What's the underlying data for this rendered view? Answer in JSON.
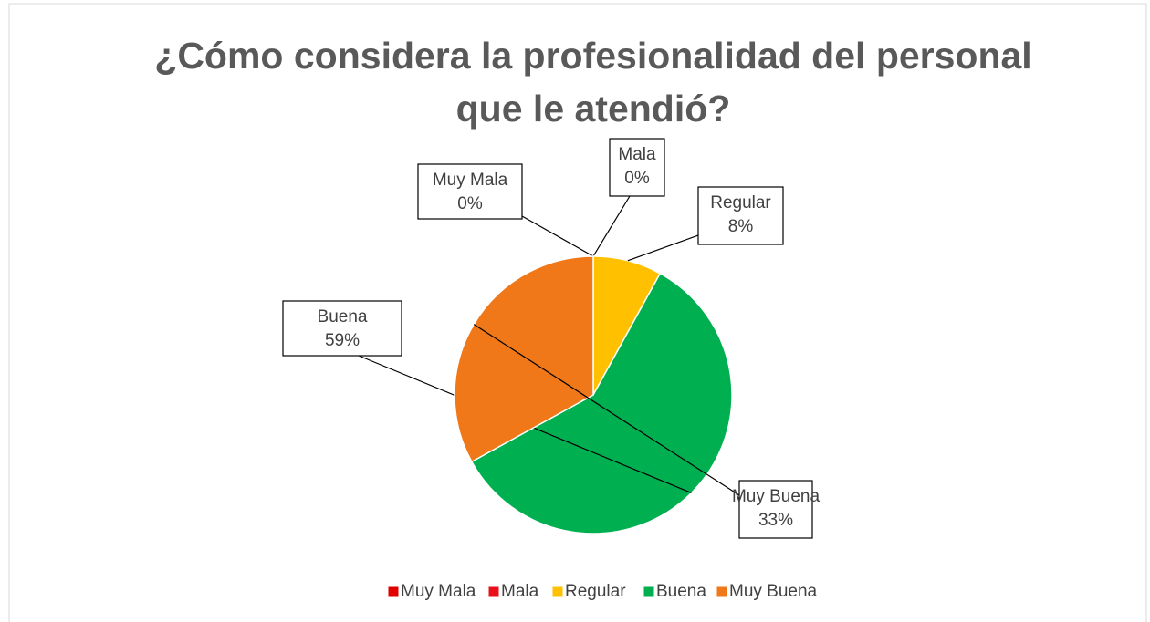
{
  "chart_data": {
    "type": "pie",
    "title": "¿Cómo considera la profesionalidad del personal que le atendió?",
    "categories": [
      "Muy Mala",
      "Mala",
      "Regular",
      "Buena",
      "Muy Buena"
    ],
    "values": [
      0,
      0,
      8,
      59,
      33
    ],
    "value_labels": [
      "0%",
      "0%",
      "8%",
      "59%",
      "33%"
    ],
    "colors": [
      "#e00000",
      "#e8101a",
      "#ffc000",
      "#00b050",
      "#f07818"
    ],
    "legend": "bottom"
  }
}
